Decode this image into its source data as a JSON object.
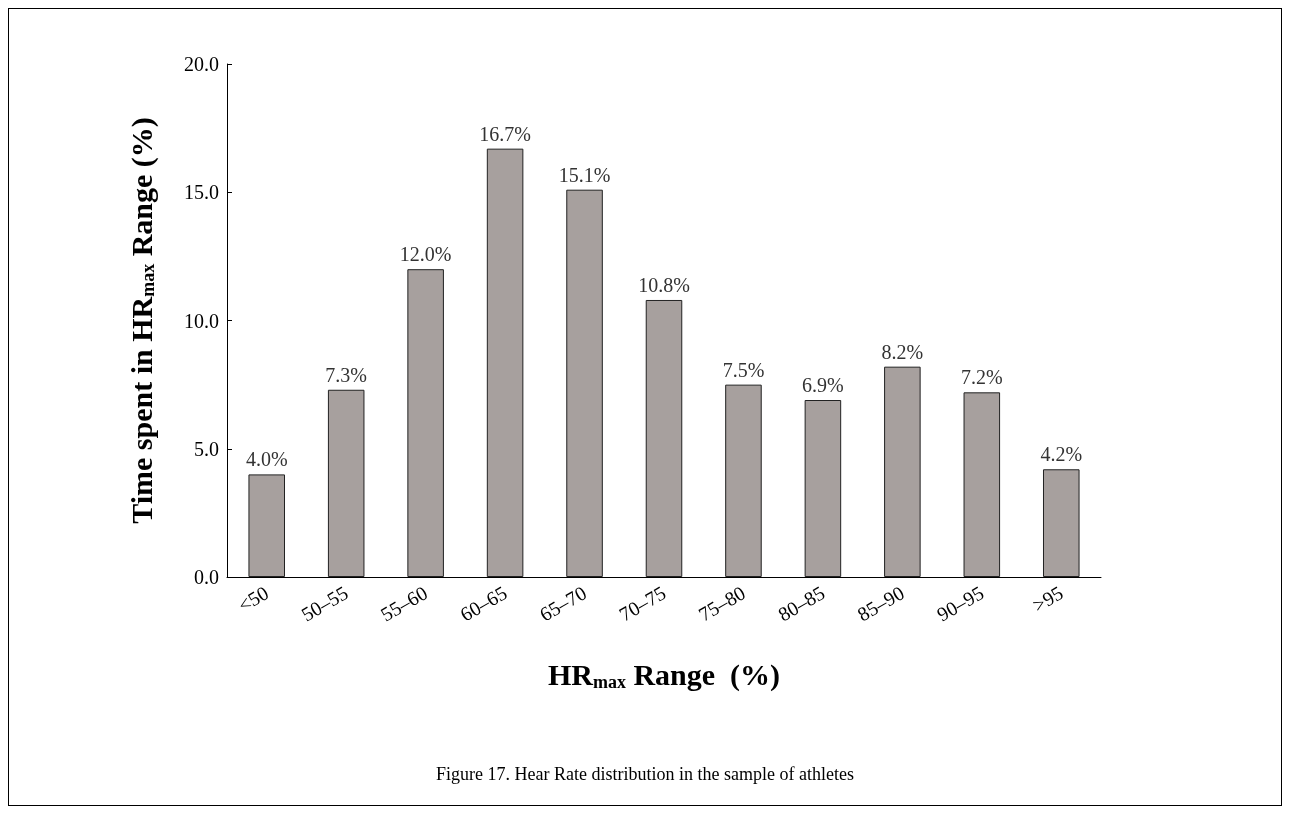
{
  "chart_data": {
    "type": "bar",
    "ylabel": "Time spent in HR$_{max}$ Range (%)",
    "xlabel": "HR$_{max}$ Range  (%)",
    "categories": [
      "<50",
      "50–55",
      "55–60",
      "60–65",
      "65–70",
      "70–75",
      "75–80",
      "80–85",
      "85–90",
      "90–95",
      ">95"
    ],
    "values": [
      4.0,
      7.3,
      12.0,
      16.7,
      15.1,
      10.8,
      7.5,
      6.9,
      8.2,
      7.2,
      4.2
    ],
    "value_labels": [
      "4.0%",
      "7.3%",
      "12.0%",
      "16.7%",
      "15.1%",
      "10.8%",
      "7.5%",
      "6.9%",
      "8.2%",
      "7.2%",
      "4.2%"
    ],
    "color": "#a7a09e",
    "ylim": [
      0,
      20
    ],
    "yticks": [
      {
        "value": 0,
        "label": "0.0"
      },
      {
        "value": 5,
        "label": "5.0"
      },
      {
        "value": 10,
        "label": "10.0"
      },
      {
        "value": 15,
        "label": "15.0"
      },
      {
        "value": 20,
        "label": "20.0"
      }
    ],
    "grid": false,
    "annotations": [
      "Figure 17. Hear Rate distribution in the sample of athletes"
    ]
  }
}
